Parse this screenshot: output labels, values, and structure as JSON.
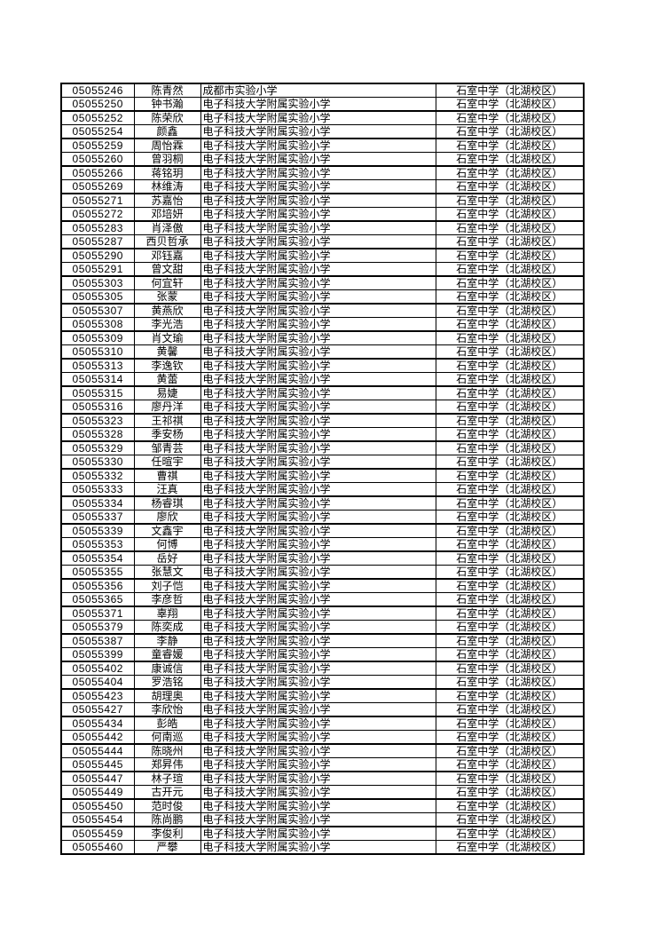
{
  "page": {
    "background_color": "#ffffff",
    "text_color": "#000000",
    "border_color": "#000000"
  },
  "table": {
    "column_names": [
      "student-id",
      "student-name",
      "primary-school",
      "middle-school"
    ],
    "rows": [
      [
        "05055246",
        "陈青然",
        "成都市实验小学",
        "石室中学（北湖校区）"
      ],
      [
        "05055250",
        "钟书瀚",
        "电子科技大学附属实验小学",
        "石室中学（北湖校区）"
      ],
      [
        "05055252",
        "陈荣欣",
        "电子科技大学附属实验小学",
        "石室中学（北湖校区）"
      ],
      [
        "05055254",
        "颜鑫",
        "电子科技大学附属实验小学",
        "石室中学（北湖校区）"
      ],
      [
        "05055259",
        "周怡霖",
        "电子科技大学附属实验小学",
        "石室中学（北湖校区）"
      ],
      [
        "05055260",
        "曾羽桐",
        "电子科技大学附属实验小学",
        "石室中学（北湖校区）"
      ],
      [
        "05055266",
        "蒋铭玥",
        "电子科技大学附属实验小学",
        "石室中学（北湖校区）"
      ],
      [
        "05055269",
        "林维涛",
        "电子科技大学附属实验小学",
        "石室中学（北湖校区）"
      ],
      [
        "05055271",
        "苏嘉怡",
        "电子科技大学附属实验小学",
        "石室中学（北湖校区）"
      ],
      [
        "05055272",
        "邓培妍",
        "电子科技大学附属实验小学",
        "石室中学（北湖校区）"
      ],
      [
        "05055283",
        "肖泽傲",
        "电子科技大学附属实验小学",
        "石室中学（北湖校区）"
      ],
      [
        "05055287",
        "西贝哲承",
        "电子科技大学附属实验小学",
        "石室中学（北湖校区）"
      ],
      [
        "05055290",
        "邓钰嘉",
        "电子科技大学附属实验小学",
        "石室中学（北湖校区）"
      ],
      [
        "05055291",
        "曾文甜",
        "电子科技大学附属实验小学",
        "石室中学（北湖校区）"
      ],
      [
        "05055303",
        "何宜轩",
        "电子科技大学附属实验小学",
        "石室中学（北湖校区）"
      ],
      [
        "05055305",
        "张蒙",
        "电子科技大学附属实验小学",
        "石室中学（北湖校区）"
      ],
      [
        "05055307",
        "黄燕欣",
        "电子科技大学附属实验小学",
        "石室中学（北湖校区）"
      ],
      [
        "05055308",
        "李光浩",
        "电子科技大学附属实验小学",
        "石室中学（北湖校区）"
      ],
      [
        "05055309",
        "肖文瑜",
        "电子科技大学附属实验小学",
        "石室中学（北湖校区）"
      ],
      [
        "05055310",
        "黄馨",
        "电子科技大学附属实验小学",
        "石室中学（北湖校区）"
      ],
      [
        "05055313",
        "李逸钦",
        "电子科技大学附属实验小学",
        "石室中学（北湖校区）"
      ],
      [
        "05055314",
        "黄蕾",
        "电子科技大学附属实验小学",
        "石室中学（北湖校区）"
      ],
      [
        "05055315",
        "易婕",
        "电子科技大学附属实验小学",
        "石室中学（北湖校区）"
      ],
      [
        "05055316",
        "廖丹洋",
        "电子科技大学附属实验小学",
        "石室中学（北湖校区）"
      ],
      [
        "05055323",
        "王祁祺",
        "电子科技大学附属实验小学",
        "石室中学（北湖校区）"
      ],
      [
        "05055328",
        "季安杨",
        "电子科技大学附属实验小学",
        "石室中学（北湖校区）"
      ],
      [
        "05055329",
        "邹青芸",
        "电子科技大学附属实验小学",
        "石室中学（北湖校区）"
      ],
      [
        "05055330",
        "任暄宇",
        "电子科技大学附属实验小学",
        "石室中学（北湖校区）"
      ],
      [
        "05055332",
        "曹祺",
        "电子科技大学附属实验小学",
        "石室中学（北湖校区）"
      ],
      [
        "05055333",
        "汪真",
        "电子科技大学附属实验小学",
        "石室中学（北湖校区）"
      ],
      [
        "05055334",
        "杨睿琪",
        "电子科技大学附属实验小学",
        "石室中学（北湖校区）"
      ],
      [
        "05055337",
        "廖欣",
        "电子科技大学附属实验小学",
        "石室中学（北湖校区）"
      ],
      [
        "05055339",
        "文鑫宇",
        "电子科技大学附属实验小学",
        "石室中学（北湖校区）"
      ],
      [
        "05055353",
        "何博",
        "电子科技大学附属实验小学",
        "石室中学（北湖校区）"
      ],
      [
        "05055354",
        "岳好",
        "电子科技大学附属实验小学",
        "石室中学（北湖校区）"
      ],
      [
        "05055355",
        "张慧文",
        "电子科技大学附属实验小学",
        "石室中学（北湖校区）"
      ],
      [
        "05055356",
        "刘子恺",
        "电子科技大学附属实验小学",
        "石室中学（北湖校区）"
      ],
      [
        "05055365",
        "李彦哲",
        "电子科技大学附属实验小学",
        "石室中学（北湖校区）"
      ],
      [
        "05055371",
        "辜翔",
        "电子科技大学附属实验小学",
        "石室中学（北湖校区）"
      ],
      [
        "05055379",
        "陈奕成",
        "电子科技大学附属实验小学",
        "石室中学（北湖校区）"
      ],
      [
        "05055387",
        "李静",
        "电子科技大学附属实验小学",
        "石室中学（北湖校区）"
      ],
      [
        "05055399",
        "童睿媛",
        "电子科技大学附属实验小学",
        "石室中学（北湖校区）"
      ],
      [
        "05055402",
        "康诚信",
        "电子科技大学附属实验小学",
        "石室中学（北湖校区）"
      ],
      [
        "05055404",
        "罗浩铭",
        "电子科技大学附属实验小学",
        "石室中学（北湖校区）"
      ],
      [
        "05055423",
        "胡理奥",
        "电子科技大学附属实验小学",
        "石室中学（北湖校区）"
      ],
      [
        "05055427",
        "李欣怡",
        "电子科技大学附属实验小学",
        "石室中学（北湖校区）"
      ],
      [
        "05055434",
        "彭皓",
        "电子科技大学附属实验小学",
        "石室中学（北湖校区）"
      ],
      [
        "05055442",
        "何南巡",
        "电子科技大学附属实验小学",
        "石室中学（北湖校区）"
      ],
      [
        "05055444",
        "陈晓州",
        "电子科技大学附属实验小学",
        "石室中学（北湖校区）"
      ],
      [
        "05055445",
        "郑昇伟",
        "电子科技大学附属实验小学",
        "石室中学（北湖校区）"
      ],
      [
        "05055447",
        "林子瑄",
        "电子科技大学附属实验小学",
        "石室中学（北湖校区）"
      ],
      [
        "05055449",
        "古开元",
        "电子科技大学附属实验小学",
        "石室中学（北湖校区）"
      ],
      [
        "05055450",
        "范时俊",
        "电子科技大学附属实验小学",
        "石室中学（北湖校区）"
      ],
      [
        "05055454",
        "陈尚鹏",
        "电子科技大学附属实验小学",
        "石室中学（北湖校区）"
      ],
      [
        "05055459",
        "李俊利",
        "电子科技大学附属实验小学",
        "石室中学（北湖校区）"
      ],
      [
        "05055460",
        "严攀",
        "电子科技大学附属实验小学",
        "石室中学（北湖校区）"
      ]
    ]
  }
}
